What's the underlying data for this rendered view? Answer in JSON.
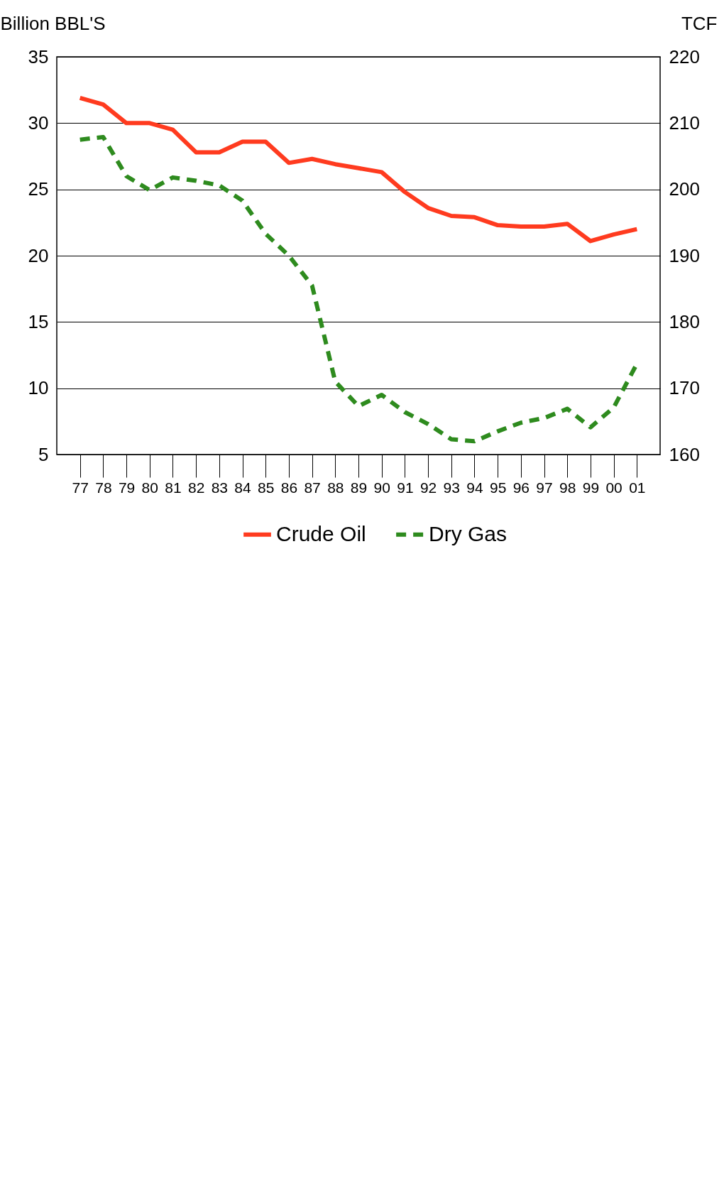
{
  "chart_data": {
    "type": "line",
    "ylabel": "Billion BBL'S",
    "y2label": "TCF",
    "x": [
      1977,
      1978,
      1979,
      1980,
      1981,
      1982,
      1983,
      1984,
      1985,
      1986,
      1987,
      1988,
      1989,
      1990,
      1991,
      1992,
      1993,
      1994,
      1995,
      1996,
      1997,
      1998,
      1999,
      2000,
      2001
    ],
    "xlim": [
      1976,
      2002
    ],
    "xticks": [
      {
        "value": 1977,
        "label": "77"
      },
      {
        "value": 1978,
        "label": "78"
      },
      {
        "value": 1979,
        "label": "79"
      },
      {
        "value": 1980,
        "label": "80"
      },
      {
        "value": 1981,
        "label": "81"
      },
      {
        "value": 1982,
        "label": "82"
      },
      {
        "value": 1983,
        "label": "83"
      },
      {
        "value": 1984,
        "label": "84"
      },
      {
        "value": 1985,
        "label": "85"
      },
      {
        "value": 1986,
        "label": "86"
      },
      {
        "value": 1987,
        "label": "87"
      },
      {
        "value": 1988,
        "label": "88"
      },
      {
        "value": 1989,
        "label": "89"
      },
      {
        "value": 1990,
        "label": "90"
      },
      {
        "value": 1991,
        "label": "91"
      },
      {
        "value": 1992,
        "label": "92"
      },
      {
        "value": 1993,
        "label": "93"
      },
      {
        "value": 1994,
        "label": "94"
      },
      {
        "value": 1995,
        "label": "95"
      },
      {
        "value": 1996,
        "label": "96"
      },
      {
        "value": 1997,
        "label": "97"
      },
      {
        "value": 1998,
        "label": "98"
      },
      {
        "value": 1999,
        "label": "99"
      },
      {
        "value": 2000,
        "label": "00"
      },
      {
        "value": 2001,
        "label": "01"
      }
    ],
    "ylim": [
      5,
      35
    ],
    "yticks": [
      5,
      10,
      15,
      20,
      25,
      30,
      35
    ],
    "y2lim": [
      160,
      220
    ],
    "y2ticks": [
      160,
      170,
      180,
      190,
      200,
      210,
      220
    ],
    "grid": "y",
    "legend": "bottom",
    "series": [
      {
        "name": "Crude Oil",
        "color": "#ff3b1f",
        "line_style": "solid",
        "values": [
          31.9,
          31.4,
          30.0,
          30.0,
          29.5,
          27.8,
          27.8,
          28.6,
          28.6,
          27.0,
          27.3,
          26.9,
          26.6,
          26.3,
          24.8,
          23.6,
          23.0,
          22.9,
          22.3,
          22.2,
          22.2,
          22.4,
          21.1,
          21.6,
          22.0
        ]
      },
      {
        "name": "Dry Gas",
        "color": "#2e8b1e",
        "line_style": "dashed",
        "axis": "y2",
        "values": [
          207.5,
          207.9,
          202.0,
          199.9,
          201.8,
          201.3,
          200.6,
          198.3,
          193.3,
          190.0,
          185.5,
          171.0,
          167.3,
          169.0,
          166.4,
          164.6,
          162.3,
          162.0,
          163.5,
          164.8,
          165.5,
          166.9,
          164.1,
          167.1,
          173.7
        ]
      }
    ]
  }
}
